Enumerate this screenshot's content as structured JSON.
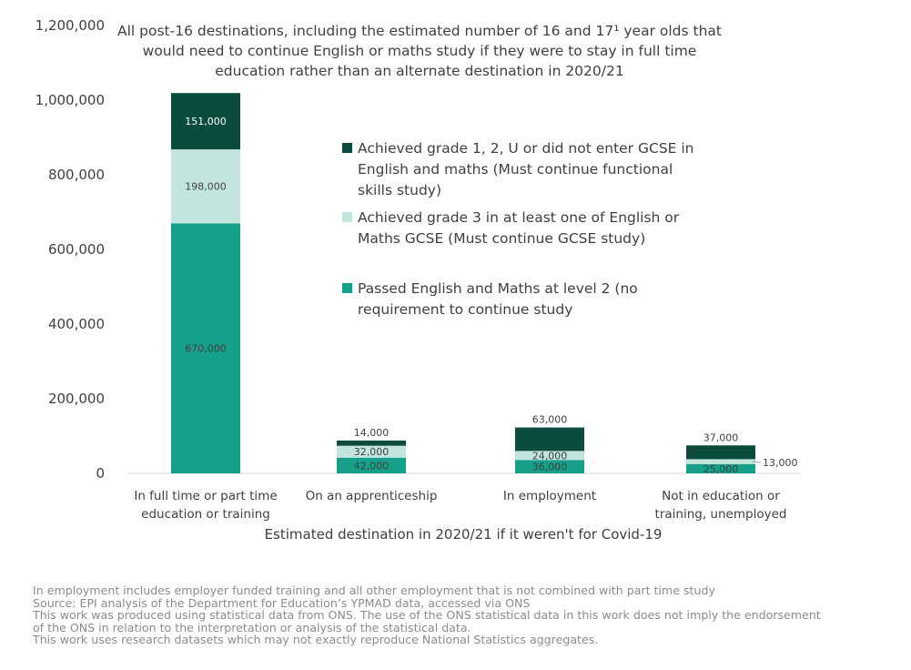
{
  "chart_data": {
    "type": "bar",
    "stacked": true,
    "title": [
      "All post-16 destinations, including the estimated number of 16 and 17¹ year olds that",
      "would need to continue English or maths study if they were to stay in full time",
      "education rather than an alternate destination in 2020/21"
    ],
    "xlabel": "Estimated destination in 2020/21 if it weren't for Covid-19",
    "ylabel": "",
    "ylim": [
      0,
      1200000
    ],
    "yticks": [
      "0",
      "200,000",
      "400,000",
      "600,000",
      "800,000",
      "1,000,000",
      "1,200,000"
    ],
    "yticks_values": [
      0,
      200000,
      400000,
      600000,
      800000,
      1000000,
      1200000
    ],
    "grid": false,
    "legend_position": "right-center",
    "categories": [
      [
        "In full time or part time",
        "education or training"
      ],
      [
        "On an apprenticeship"
      ],
      [
        "In employment"
      ],
      [
        "Not in education or",
        "training, unemployed"
      ]
    ],
    "series": [
      {
        "name": [
          "Passed English and Maths at level 2 (no",
          "requirement to continue study"
        ],
        "color": "#16a08a",
        "values": [
          670000,
          42000,
          36000,
          25000
        ],
        "labels": [
          "670,000",
          "42,000",
          "36,000",
          "25,000"
        ]
      },
      {
        "name": [
          "Achieved grade 3 in at least one of English or",
          "Maths GCSE (Must continue GCSE study)"
        ],
        "color": "#c2e6df",
        "values": [
          198000,
          32000,
          24000,
          13000
        ],
        "labels": [
          "198,000",
          "32,000",
          "24,000",
          "13,000"
        ]
      },
      {
        "name": [
          "Achieved grade 1, 2, U or did not enter GCSE in",
          "English and maths (Must continue functional",
          "skills study)"
        ],
        "color": "#0c4c3e",
        "values": [
          151000,
          14000,
          63000,
          37000
        ],
        "labels": [
          "151,000",
          "14,000",
          "63,000",
          "37,000"
        ]
      }
    ]
  },
  "notes": [
    "In employment includes employer funded training and all other employment that is not combined with part time study",
    "Source: EPI analysis of the Department for Education’s YPMAD data, accessed via ONS",
    "This work was produced using statistical data from ONS. The use of the ONS statistical data in this work does not imply the endorsement",
    "of the ONS in relation to the interpretation or analysis of the statistical data.",
    "This work uses research datasets which may not exactly reproduce National Statistics aggregates."
  ]
}
